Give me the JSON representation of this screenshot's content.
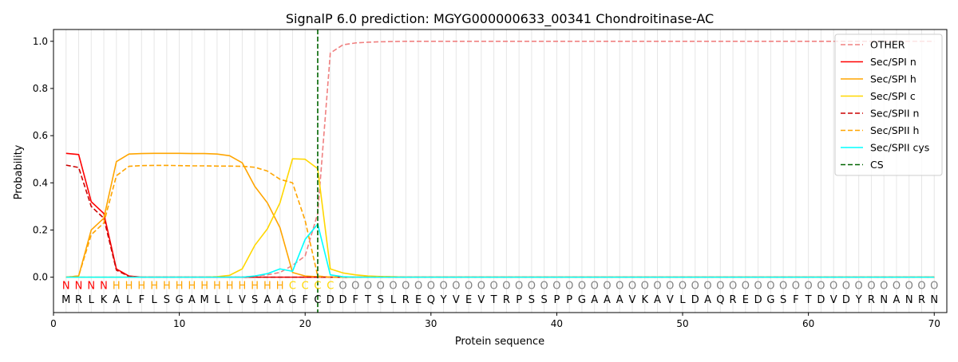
{
  "chart_data": {
    "type": "line",
    "title": "SignalP 6.0 prediction: MGYG000000633_00341 Chondroitinase-AC",
    "xlabel": "Protein sequence",
    "ylabel": "Probability",
    "xlim": [
      0,
      71
    ],
    "ylim": [
      -0.15,
      1.05
    ],
    "x_ticks": [
      0,
      10,
      20,
      30,
      40,
      50,
      60,
      70
    ],
    "y_ticks": [
      0.0,
      0.2,
      0.4,
      0.6,
      0.8,
      1.0
    ],
    "x_tick_labels": [
      "0",
      "10",
      "20",
      "30",
      "40",
      "50",
      "60",
      "70"
    ],
    "y_tick_labels": [
      "0.0",
      "0.2",
      "0.4",
      "0.6",
      "0.8",
      "1.0"
    ],
    "grid": "vertical lines at each residue",
    "legend_position": "top-right",
    "sequence": "MRLKALFLSGAMLLVSAAGFCDDFTSLREQYVEVTRPSSPPGAAAVKAVLDAQREDGSFTDVDYRNANRN",
    "labels": "NNNNHHHHHHHHHHHHHHCCCCOOOOOOOOOOOOOOOOOOOOOOOOOOOOOOOOOOOOOOOOOOOOOOOO",
    "label_colors": {
      "N": "#ff0000",
      "H": "#ffa500",
      "C": "#ffd700",
      "O": "#808080"
    },
    "cleavage_site": 21,
    "series": [
      {
        "name": "OTHER",
        "color": "#f08080",
        "dash": "dashed",
        "x": [
          1,
          2,
          3,
          4,
          5,
          6,
          7,
          8,
          9,
          10,
          11,
          12,
          13,
          14,
          15,
          16,
          17,
          18,
          19,
          20,
          21,
          22,
          23,
          24,
          25,
          26,
          27,
          28,
          29,
          30,
          31,
          32,
          33,
          34,
          35,
          36,
          37,
          38,
          39,
          40,
          41,
          42,
          43,
          44,
          45,
          46,
          47,
          48,
          49,
          50,
          51,
          52,
          53,
          54,
          55,
          56,
          57,
          58,
          59,
          60,
          61,
          62,
          63,
          64,
          65,
          66,
          67,
          68,
          69,
          70
        ],
        "values": [
          0,
          0,
          0,
          0,
          0,
          0,
          0,
          0,
          0,
          0,
          0,
          0,
          0,
          0,
          0,
          0.005,
          0.01,
          0.02,
          0.05,
          0.09,
          0.27,
          0.95,
          0.985,
          0.993,
          0.996,
          0.998,
          0.999,
          1,
          1,
          1,
          1,
          1,
          1,
          1,
          1,
          1,
          1,
          1,
          1,
          1,
          1,
          1,
          1,
          1,
          1,
          1,
          1,
          1,
          1,
          1,
          1,
          1,
          1,
          1,
          1,
          1,
          1,
          1,
          1,
          1,
          1,
          1,
          1,
          1,
          1,
          1,
          1,
          1,
          1,
          1
        ]
      },
      {
        "name": "Sec/SPI n",
        "color": "#ff0000",
        "dash": "solid",
        "x": [
          1,
          2,
          3,
          4,
          5,
          6,
          7,
          8,
          9,
          10,
          11,
          12,
          13,
          14,
          15,
          16,
          17,
          18,
          19,
          20,
          21,
          22,
          23,
          24,
          25,
          26,
          27,
          28,
          29,
          30,
          31,
          32,
          33,
          34,
          35,
          36,
          37,
          38,
          39,
          40,
          41,
          42,
          43,
          44,
          45,
          46,
          47,
          48,
          49,
          50,
          51,
          52,
          53,
          54,
          55,
          56,
          57,
          58,
          59,
          60,
          61,
          62,
          63,
          64,
          65,
          66,
          67,
          68,
          69,
          70
        ],
        "values": [
          0.525,
          0.52,
          0.32,
          0.27,
          0.035,
          0.005,
          0,
          0,
          0,
          0,
          0,
          0,
          0,
          0,
          0,
          0,
          0,
          0,
          0,
          0,
          0,
          0,
          0,
          0,
          0,
          0,
          0,
          0,
          0,
          0,
          0,
          0,
          0,
          0,
          0,
          0,
          0,
          0,
          0,
          0,
          0,
          0,
          0,
          0,
          0,
          0,
          0,
          0,
          0,
          0,
          0,
          0,
          0,
          0,
          0,
          0,
          0,
          0,
          0,
          0,
          0,
          0,
          0,
          0,
          0,
          0,
          0,
          0,
          0,
          0
        ]
      },
      {
        "name": "Sec/SPI h",
        "color": "#ffa500",
        "dash": "solid",
        "x": [
          1,
          2,
          3,
          4,
          5,
          6,
          7,
          8,
          9,
          10,
          11,
          12,
          13,
          14,
          15,
          16,
          17,
          18,
          19,
          20,
          21,
          22,
          23,
          24,
          25,
          26,
          27,
          28,
          29,
          30,
          31,
          32,
          33,
          34,
          35,
          36,
          37,
          38,
          39,
          40,
          41,
          42,
          43,
          44,
          45,
          46,
          47,
          48,
          49,
          50,
          51,
          52,
          53,
          54,
          55,
          56,
          57,
          58,
          59,
          60,
          61,
          62,
          63,
          64,
          65,
          66,
          67,
          68,
          69,
          70
        ],
        "values": [
          0,
          0.005,
          0.2,
          0.25,
          0.49,
          0.522,
          0.524,
          0.525,
          0.525,
          0.525,
          0.524,
          0.524,
          0.522,
          0.515,
          0.485,
          0.385,
          0.315,
          0.21,
          0.02,
          0.005,
          0.002,
          0,
          0,
          0,
          0,
          0,
          0,
          0,
          0,
          0,
          0,
          0,
          0,
          0,
          0,
          0,
          0,
          0,
          0,
          0,
          0,
          0,
          0,
          0,
          0,
          0,
          0,
          0,
          0,
          0,
          0,
          0,
          0,
          0,
          0,
          0,
          0,
          0,
          0,
          0,
          0,
          0,
          0,
          0,
          0,
          0,
          0,
          0,
          0,
          0
        ]
      },
      {
        "name": "Sec/SPI c",
        "color": "#ffd700",
        "dash": "solid",
        "x": [
          1,
          2,
          3,
          4,
          5,
          6,
          7,
          8,
          9,
          10,
          11,
          12,
          13,
          14,
          15,
          16,
          17,
          18,
          19,
          20,
          21,
          22,
          23,
          24,
          25,
          26,
          27,
          28,
          29,
          30,
          31,
          32,
          33,
          34,
          35,
          36,
          37,
          38,
          39,
          40,
          41,
          42,
          43,
          44,
          45,
          46,
          47,
          48,
          49,
          50,
          51,
          52,
          53,
          54,
          55,
          56,
          57,
          58,
          59,
          60,
          61,
          62,
          63,
          64,
          65,
          66,
          67,
          68,
          69,
          70
        ],
        "values": [
          0,
          0,
          0,
          0,
          0,
          0,
          0,
          0,
          0,
          0,
          0,
          0,
          0.002,
          0.008,
          0.035,
          0.135,
          0.205,
          0.315,
          0.502,
          0.5,
          0.46,
          0.035,
          0.018,
          0.01,
          0.005,
          0.003,
          0.002,
          0,
          0,
          0,
          0,
          0,
          0,
          0,
          0,
          0,
          0,
          0,
          0,
          0,
          0,
          0,
          0,
          0,
          0,
          0,
          0,
          0,
          0,
          0,
          0,
          0,
          0,
          0,
          0,
          0,
          0,
          0,
          0,
          0,
          0,
          0,
          0,
          0,
          0,
          0,
          0,
          0,
          0,
          0
        ]
      },
      {
        "name": "Sec/SPII n",
        "color": "#cc0000",
        "dash": "dashed",
        "x": [
          1,
          2,
          3,
          4,
          5,
          6,
          7,
          8,
          9,
          10,
          11,
          12,
          13,
          14,
          15,
          16,
          17,
          18,
          19,
          20,
          21,
          22,
          23,
          24,
          25,
          26,
          27,
          28,
          29,
          30,
          31,
          32,
          33,
          34,
          35,
          36,
          37,
          38,
          39,
          40,
          41,
          42,
          43,
          44,
          45,
          46,
          47,
          48,
          49,
          50,
          51,
          52,
          53,
          54,
          55,
          56,
          57,
          58,
          59,
          60,
          61,
          62,
          63,
          64,
          65,
          66,
          67,
          68,
          69,
          70
        ],
        "values": [
          0.475,
          0.465,
          0.3,
          0.25,
          0.03,
          0.003,
          0,
          0,
          0,
          0,
          0,
          0,
          0,
          0,
          0,
          0,
          0,
          0,
          0,
          0,
          0,
          0,
          0,
          0,
          0,
          0,
          0,
          0,
          0,
          0,
          0,
          0,
          0,
          0,
          0,
          0,
          0,
          0,
          0,
          0,
          0,
          0,
          0,
          0,
          0,
          0,
          0,
          0,
          0,
          0,
          0,
          0,
          0,
          0,
          0,
          0,
          0,
          0,
          0,
          0,
          0,
          0,
          0,
          0,
          0,
          0,
          0,
          0,
          0,
          0
        ]
      },
      {
        "name": "Sec/SPII h",
        "color": "#ffa500",
        "dash": "dashed",
        "x": [
          1,
          2,
          3,
          4,
          5,
          6,
          7,
          8,
          9,
          10,
          11,
          12,
          13,
          14,
          15,
          16,
          17,
          18,
          19,
          20,
          21,
          22,
          23,
          24,
          25,
          26,
          27,
          28,
          29,
          30,
          31,
          32,
          33,
          34,
          35,
          36,
          37,
          38,
          39,
          40,
          41,
          42,
          43,
          44,
          45,
          46,
          47,
          48,
          49,
          50,
          51,
          52,
          53,
          54,
          55,
          56,
          57,
          58,
          59,
          60,
          61,
          62,
          63,
          64,
          65,
          66,
          67,
          68,
          69,
          70
        ],
        "values": [
          0,
          0.005,
          0.18,
          0.23,
          0.43,
          0.47,
          0.473,
          0.474,
          0.474,
          0.473,
          0.472,
          0.472,
          0.471,
          0.471,
          0.47,
          0.466,
          0.45,
          0.415,
          0.4,
          0.24,
          0.005,
          0,
          0,
          0,
          0,
          0,
          0,
          0,
          0,
          0,
          0,
          0,
          0,
          0,
          0,
          0,
          0,
          0,
          0,
          0,
          0,
          0,
          0,
          0,
          0,
          0,
          0,
          0,
          0,
          0,
          0,
          0,
          0,
          0,
          0,
          0,
          0,
          0,
          0,
          0,
          0,
          0,
          0,
          0,
          0,
          0,
          0,
          0,
          0,
          0
        ]
      },
      {
        "name": "Sec/SPII cys",
        "color": "#00ffff",
        "dash": "solid",
        "x": [
          1,
          2,
          3,
          4,
          5,
          6,
          7,
          8,
          9,
          10,
          11,
          12,
          13,
          14,
          15,
          16,
          17,
          18,
          19,
          20,
          21,
          22,
          23,
          24,
          25,
          26,
          27,
          28,
          29,
          30,
          31,
          32,
          33,
          34,
          35,
          36,
          37,
          38,
          39,
          40,
          41,
          42,
          43,
          44,
          45,
          46,
          47,
          48,
          49,
          50,
          51,
          52,
          53,
          54,
          55,
          56,
          57,
          58,
          59,
          60,
          61,
          62,
          63,
          64,
          65,
          66,
          67,
          68,
          69,
          70
        ],
        "values": [
          0,
          0,
          0,
          0,
          0,
          0,
          0,
          0,
          0,
          0,
          0,
          0,
          0,
          0,
          0,
          0.005,
          0.015,
          0.035,
          0.025,
          0.16,
          0.225,
          0.01,
          0.002,
          0,
          0,
          0,
          0,
          0,
          0,
          0,
          0,
          0,
          0,
          0,
          0,
          0,
          0,
          0,
          0,
          0,
          0,
          0,
          0,
          0,
          0,
          0,
          0,
          0,
          0,
          0,
          0,
          0,
          0,
          0,
          0,
          0,
          0,
          0,
          0,
          0,
          0,
          0,
          0,
          0,
          0,
          0,
          0,
          0,
          0,
          0
        ]
      }
    ],
    "legend": [
      {
        "name": "OTHER",
        "color": "#f08080",
        "dash": "dashed"
      },
      {
        "name": "Sec/SPI n",
        "color": "#ff0000",
        "dash": "solid"
      },
      {
        "name": "Sec/SPI h",
        "color": "#ffa500",
        "dash": "solid"
      },
      {
        "name": "Sec/SPI c",
        "color": "#ffd700",
        "dash": "solid"
      },
      {
        "name": "Sec/SPII n",
        "color": "#cc0000",
        "dash": "dashed"
      },
      {
        "name": "Sec/SPII h",
        "color": "#ffa500",
        "dash": "dashed"
      },
      {
        "name": "Sec/SPII cys",
        "color": "#00ffff",
        "dash": "solid"
      },
      {
        "name": "CS",
        "color": "#006400",
        "dash": "dashed"
      }
    ]
  }
}
